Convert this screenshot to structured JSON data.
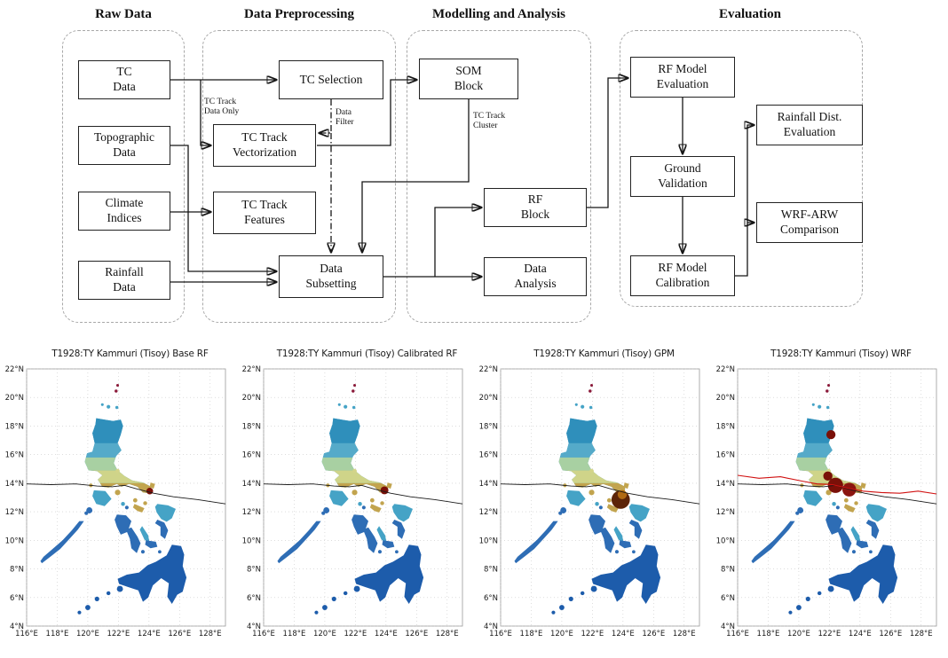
{
  "flowchart": {
    "section_titles": [
      "Raw Data",
      "Data Preprocessing",
      "Modelling and Analysis",
      "Evaluation"
    ],
    "boxes": {
      "tc_data": "TC\nData",
      "topographic": "Topographic\nData",
      "climate": "Climate\nIndices",
      "rainfall": "Rainfall\nData",
      "tc_selection": "TC Selection",
      "vectorization": "TC Track\nVectorization",
      "features": "TC Track\nFeatures",
      "subsetting": "Data\nSubsetting",
      "som": "SOM\nBlock",
      "rf": "RF\nBlock",
      "analysis": "Data\nAnalysis",
      "rf_eval": "RF Model\nEvaluation",
      "ground": "Ground\nValidation",
      "calibration": "RF Model\nCalibration",
      "rainfall_dist": "Rainfall Dist.\nEvaluation",
      "wrf_arw": "WRF-ARW\nComparison"
    },
    "edge_labels": {
      "track_only": "TC Track\nData Only",
      "data_filter": "Data\nFilter",
      "track_cluster": "TC Track\nCluster"
    }
  },
  "maps": {
    "panels": [
      {
        "title": "T1928:TY Kammuri (Tisoy) Base RF",
        "variant": "base",
        "hotspots": [
          {
            "lon": 124.05,
            "lat": 13.45,
            "r": 0.22,
            "color": "#7a1008"
          }
        ]
      },
      {
        "title": "T1928:TY Kammuri (Tisoy) Calibrated RF",
        "variant": "calibrated",
        "hotspots": [
          {
            "lon": 123.9,
            "lat": 13.5,
            "r": 0.26,
            "color": "#7a1008"
          }
        ]
      },
      {
        "title": "T1928:TY Kammuri (Tisoy) GPM",
        "variant": "gpm",
        "hotspots": [
          {
            "lon": 123.85,
            "lat": 12.85,
            "r": 0.6,
            "color": "#5c2408"
          },
          {
            "lon": 123.95,
            "lat": 13.2,
            "r": 0.3,
            "color": "#b06a14"
          }
        ]
      },
      {
        "title": "T1928:TY Kammuri (Tisoy) WRF",
        "variant": "wrf",
        "show_red_track": true,
        "hotspots": [
          {
            "lon": 122.4,
            "lat": 13.85,
            "r": 0.5,
            "color": "#7a1008"
          },
          {
            "lon": 123.3,
            "lat": 13.55,
            "r": 0.45,
            "color": "#8b1510"
          },
          {
            "lon": 121.9,
            "lat": 14.5,
            "r": 0.3,
            "color": "#7a1008"
          },
          {
            "lon": 122.1,
            "lat": 17.4,
            "r": 0.3,
            "color": "#7a1008"
          }
        ]
      }
    ],
    "y_ticks": [
      "22°N",
      "20°N",
      "18°N",
      "16°N",
      "14°N",
      "12°N",
      "10°N",
      "8°N",
      "6°N",
      "4°N"
    ],
    "x_ticks": [
      "116°E",
      "118°E",
      "120°E",
      "122°E",
      "124°E",
      "126°E",
      "128°E"
    ],
    "lon_min": 116,
    "lon_max": 129,
    "lat_min": 4,
    "lat_max": 22,
    "black_track": [
      [
        116,
        13.95
      ],
      [
        117.6,
        13.9
      ],
      [
        119.2,
        13.95
      ],
      [
        120.6,
        13.8
      ],
      [
        121.6,
        13.75
      ],
      [
        122.4,
        13.85
      ],
      [
        123.2,
        13.6
      ],
      [
        124.3,
        13.3
      ],
      [
        125.6,
        13.05
      ],
      [
        127.2,
        12.85
      ],
      [
        129,
        12.55
      ]
    ],
    "red_track": [
      [
        116,
        14.55
      ],
      [
        117.4,
        14.35
      ],
      [
        118.8,
        14.45
      ],
      [
        120.2,
        14.15
      ],
      [
        121.2,
        13.95
      ],
      [
        122.2,
        13.9
      ],
      [
        123.2,
        13.65
      ],
      [
        124.2,
        13.45
      ],
      [
        125.4,
        13.35
      ],
      [
        126.6,
        13.3
      ],
      [
        127.8,
        13.45
      ],
      [
        129,
        13.25
      ]
    ],
    "colors": {
      "track": "#1a1a1a",
      "red_track": "#d01010",
      "grid": "#c8c8c8",
      "frame": "#999999",
      "deep_blue": "#1d5cab",
      "blue": "#2e6db5",
      "teal": "#45a3c6",
      "light_teal": "#7cc4d6",
      "pale_green": "#aed4a2",
      "pale_yellow": "#d3d489",
      "khaki": "#c2a44e",
      "dark_red": "#7a1008",
      "maroon_dot": "#8b1a3a"
    }
  }
}
